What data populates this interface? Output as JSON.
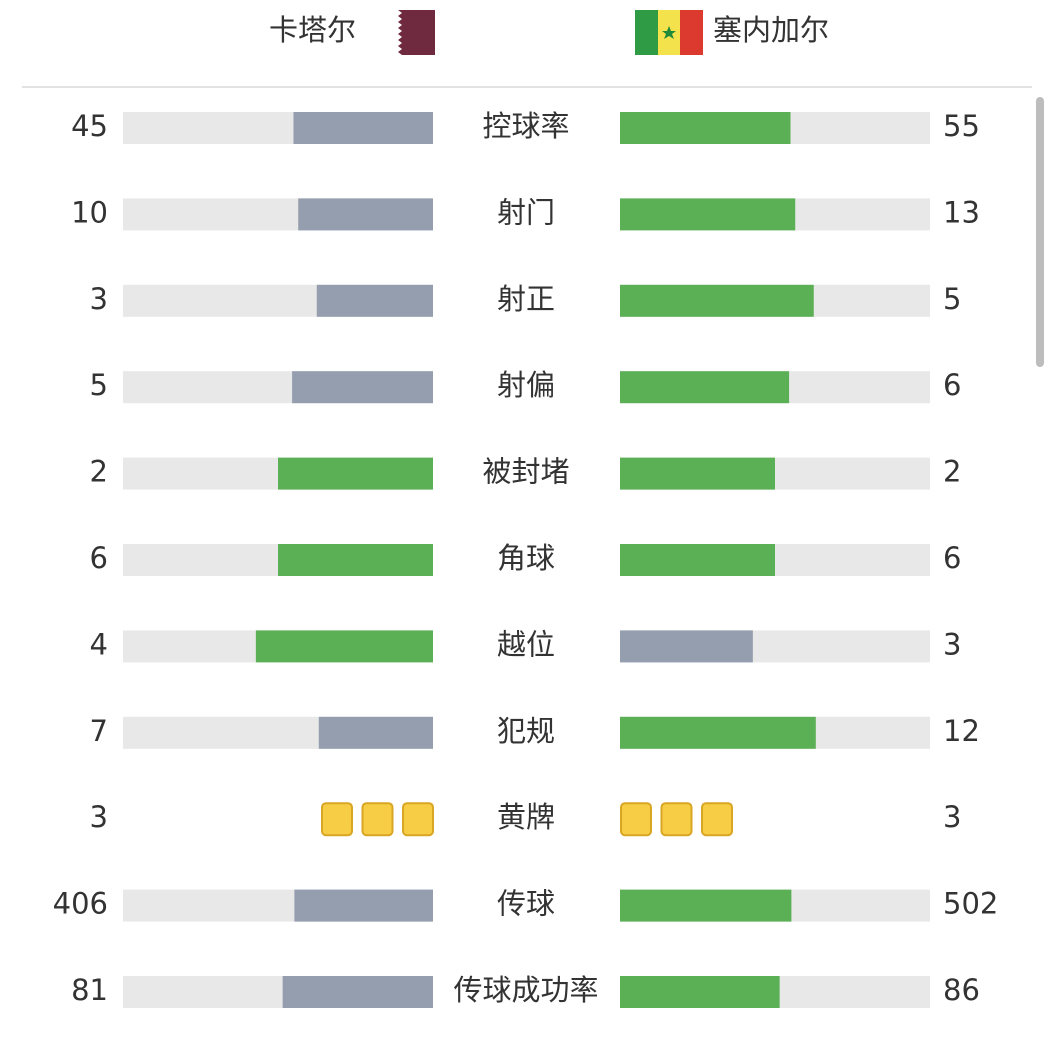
{
  "header": {
    "home": "卡塔尔",
    "away": "塞内加尔"
  },
  "stats": [
    {
      "label": "控球率",
      "home": 45,
      "away": 55
    },
    {
      "label": "射门",
      "home": 10,
      "away": 13
    },
    {
      "label": "射正",
      "home": 3,
      "away": 5
    },
    {
      "label": "射偏",
      "home": 5,
      "away": 6
    },
    {
      "label": "被封堵",
      "home": 2,
      "away": 2
    },
    {
      "label": "角球",
      "home": 6,
      "away": 6
    },
    {
      "label": "越位",
      "home": 4,
      "away": 3
    },
    {
      "label": "犯规",
      "home": 7,
      "away": 12
    },
    {
      "label": "黄牌",
      "home": 3,
      "away": 3,
      "type": "cards"
    },
    {
      "label": "传球",
      "home": 406,
      "away": 502
    },
    {
      "label": "传球成功率",
      "home": 81,
      "away": 86
    }
  ]
}
